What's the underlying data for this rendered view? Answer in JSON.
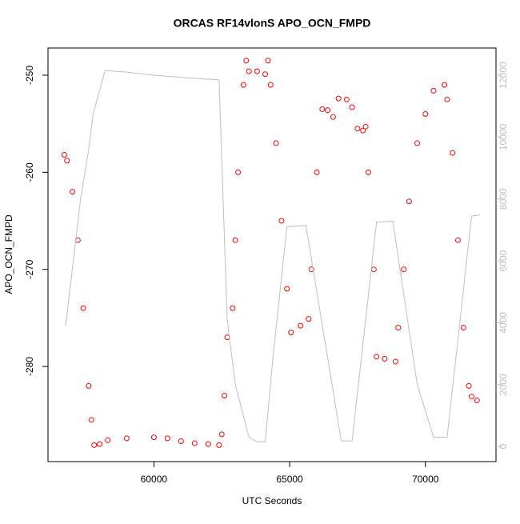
{
  "chart_data": {
    "type": "scatter",
    "title": "ORCAS RF14vlonS APO_OCN_FMPD",
    "x_label": "UTC Seconds",
    "y_label": "APO_OCN_FMPD",
    "xlim": [
      56100,
      72600
    ],
    "ylim": [
      -289.8,
      -247.2
    ],
    "y2lim": [
      -490,
      12880
    ],
    "xticks": [
      60000,
      65000,
      70000
    ],
    "yticks": [
      -280,
      -270,
      -260,
      -250
    ],
    "y2ticks": [
      0,
      2000,
      4000,
      6000,
      8000,
      10000,
      12000
    ],
    "series": [
      {
        "type": "scatter",
        "color": "#ff0000",
        "x": [
          56700,
          56800,
          57000,
          57200,
          57400,
          57600,
          57700,
          57800,
          58000,
          58300,
          59000,
          60000,
          60500,
          61000,
          61500,
          62000,
          62400,
          62500,
          62600,
          62700,
          62900,
          63000,
          63100,
          63300,
          63400,
          63500,
          63800,
          64100,
          64200,
          64300,
          64500,
          64700,
          64900,
          65050,
          65400,
          65700,
          65800,
          66000,
          66200,
          66400,
          66600,
          66800,
          67100,
          67300,
          67500,
          67700,
          67800,
          67900,
          68100,
          68200,
          68500,
          68900,
          69000,
          69200,
          69400,
          69700,
          70000,
          70300,
          70700,
          70800,
          71000,
          71200,
          71400,
          71600,
          71700,
          71900
        ],
        "values": [
          -258.2,
          -258.8,
          -262,
          -267,
          -274,
          -282,
          -285.5,
          -288.1,
          -288.0,
          -287.6,
          -287.4,
          -287.3,
          -287.4,
          -287.7,
          -287.9,
          -288.0,
          -288.1,
          -287,
          -283,
          -277,
          -274,
          -267,
          -260,
          -251,
          -248.5,
          -249.6,
          -249.6,
          -249.9,
          -248.5,
          -251,
          -257,
          -265,
          -272,
          -276.5,
          -275.8,
          -275.1,
          -270,
          -260,
          -253.5,
          -253.6,
          -254.3,
          -252.4,
          -252.5,
          -253.3,
          -255.5,
          -255.7,
          -255.3,
          -260,
          -270,
          -279,
          -279.2,
          -279.5,
          -276,
          -270,
          -263,
          -257,
          -254,
          -251.6,
          -251,
          -252.5,
          -258,
          -267,
          -276,
          -282,
          -283.1,
          -283.5
        ]
      },
      {
        "type": "line",
        "axis": "y2",
        "color": "#bebebe",
        "x": [
          56750,
          57300,
          57600,
          57750,
          58200,
          59000,
          60000,
          61500,
          62400,
          62700,
          63000,
          63500,
          63800,
          64100,
          64400,
          64900,
          65600,
          66900,
          67300,
          68200,
          68800,
          69700,
          70300,
          70800,
          71700,
          72000
        ],
        "values": [
          3900,
          8000,
          9600,
          10700,
          12150,
          12100,
          12000,
          11900,
          11850,
          4100,
          2000,
          300,
          150,
          150,
          3000,
          7100,
          7150,
          180,
          180,
          7250,
          7280,
          2000,
          300,
          300,
          7450,
          7480
        ]
      }
    ]
  }
}
